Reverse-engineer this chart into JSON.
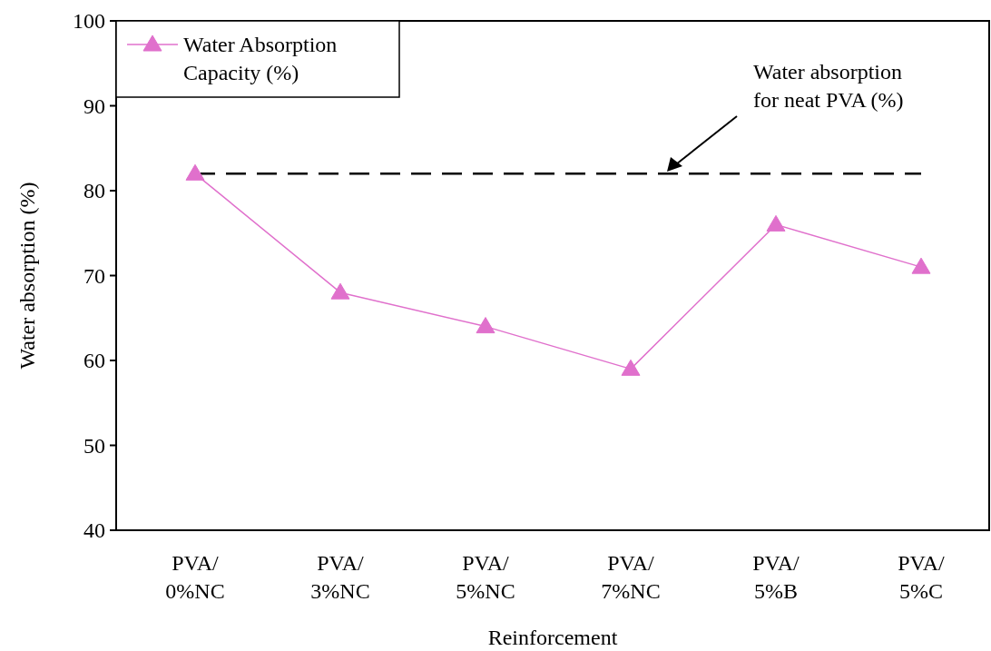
{
  "chart_data": {
    "type": "line",
    "xlabel": "Reinforcement",
    "ylabel": "Water absorption (%)",
    "categories": [
      "PVA/\n0%NC",
      "PVA/\n3%NC",
      "PVA/\n5%NC",
      "PVA/\n7%NC",
      "PVA/\n5%B",
      "PVA/\n5%C"
    ],
    "series": [
      {
        "name": "Water Absorption Capacity (%)",
        "color": "#e070cc",
        "values": [
          82,
          68,
          64,
          59,
          76,
          71
        ]
      }
    ],
    "ylim": [
      40,
      100
    ],
    "yticks": [
      40,
      50,
      60,
      70,
      80,
      90,
      100
    ],
    "ref_lines": [
      {
        "axis": "y",
        "value": 82,
        "label": "Water absorption\nfor neat PVA (%)",
        "line_style": "dashed",
        "color": "#000000"
      }
    ],
    "legend": "top left",
    "marker": "triangle",
    "line_style": "solid",
    "grid": false
  }
}
